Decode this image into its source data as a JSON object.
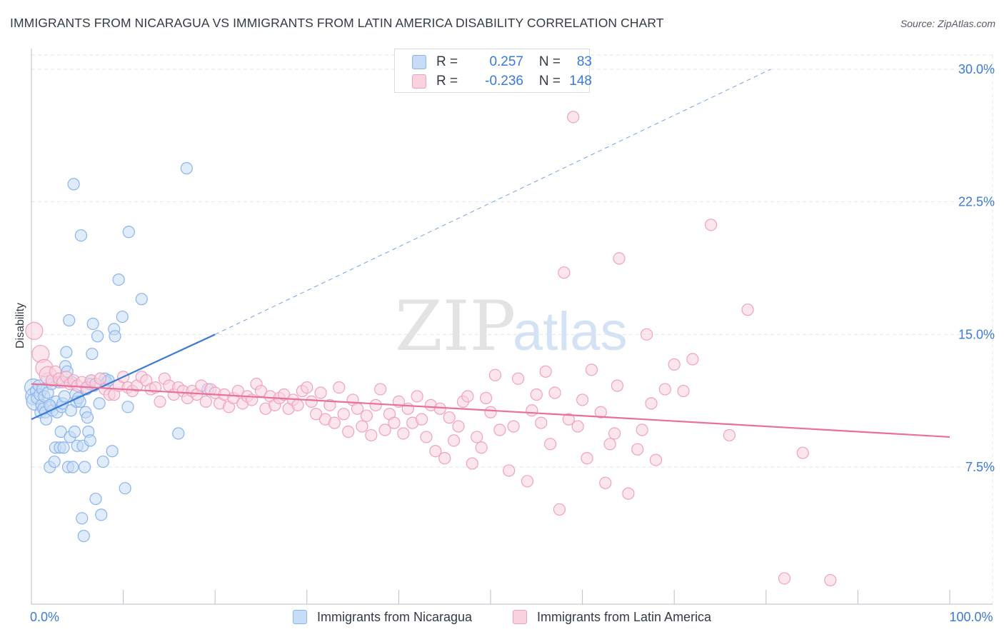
{
  "title": "IMMIGRANTS FROM NICARAGUA VS IMMIGRANTS FROM LATIN AMERICA DISABILITY CORRELATION CHART",
  "source": "Source: ZipAtlas.com",
  "watermark": {
    "zip": "ZIP",
    "atlas": "atlas"
  },
  "stats": [
    {
      "r_label": "R =",
      "r_value": "0.257",
      "n_label": "N =",
      "n_value": "83",
      "color": "#8ab4ec",
      "fill": "#c7dcf6"
    },
    {
      "r_label": "R =",
      "r_value": "-0.236",
      "n_label": "N =",
      "n_value": "148",
      "color": "#f1a1bd",
      "fill": "#fad2df"
    }
  ],
  "chart_data": {
    "type": "scatter",
    "xlabel": "",
    "ylabel": "Disability",
    "xlim": [
      0,
      100
    ],
    "ylim": [
      0,
      31.5
    ],
    "x_tick_labels": [
      {
        "value": 0,
        "label": "0.0%"
      },
      {
        "value": 100,
        "label": "100.0%"
      }
    ],
    "y_tick_labels": [
      {
        "value": 7.5,
        "label": "7.5%"
      },
      {
        "value": 15.0,
        "label": "15.0%"
      },
      {
        "value": 22.5,
        "label": "22.5%"
      },
      {
        "value": 30.0,
        "label": "30.0%"
      }
    ],
    "x_minor_ticks": [
      0,
      10,
      20,
      30,
      40,
      50,
      60,
      70,
      80,
      90,
      100
    ],
    "grid": true,
    "legend_position": "bottom",
    "series": [
      {
        "name": "Immigrants from Nicaragua",
        "color": "#3a7bd5",
        "marker_fill": "#c7dcf6",
        "marker_stroke": "#8ab4ec",
        "trend": {
          "x1": 0,
          "y1": 10.2,
          "x2": 20,
          "y2": 15.0,
          "dashed_to_x": 80.5,
          "dashed_to_y": 30.0
        },
        "points": [
          [
            0.2,
            12.0
          ],
          [
            0.3,
            11.5
          ],
          [
            0.4,
            11.2
          ],
          [
            0.5,
            11.8
          ],
          [
            0.6,
            11.4
          ],
          [
            0.8,
            12.1
          ],
          [
            0.9,
            11.6
          ],
          [
            1.0,
            10.6
          ],
          [
            1.1,
            11.0
          ],
          [
            1.2,
            11.9
          ],
          [
            1.3,
            10.8
          ],
          [
            1.4,
            11.5
          ],
          [
            1.5,
            10.6
          ],
          [
            1.6,
            10.2
          ],
          [
            1.7,
            12.5
          ],
          [
            1.8,
            11.7
          ],
          [
            2.0,
            7.5
          ],
          [
            2.1,
            10.9
          ],
          [
            2.2,
            12.2
          ],
          [
            2.3,
            10.7
          ],
          [
            2.5,
            7.8
          ],
          [
            2.6,
            8.6
          ],
          [
            2.7,
            11.2
          ],
          [
            2.8,
            10.6
          ],
          [
            3.0,
            12.3
          ],
          [
            3.1,
            8.6
          ],
          [
            3.2,
            9.5
          ],
          [
            3.3,
            10.9
          ],
          [
            3.4,
            11.1
          ],
          [
            3.5,
            8.6
          ],
          [
            3.6,
            11.5
          ],
          [
            3.7,
            13.2
          ],
          [
            3.8,
            14.0
          ],
          [
            3.9,
            12.9
          ],
          [
            4.0,
            7.5
          ],
          [
            4.1,
            15.8
          ],
          [
            4.2,
            9.2
          ],
          [
            4.3,
            10.7
          ],
          [
            4.4,
            12.3
          ],
          [
            4.5,
            7.5
          ],
          [
            4.6,
            23.5
          ],
          [
            4.7,
            9.5
          ],
          [
            4.8,
            11.6
          ],
          [
            4.9,
            11.2
          ],
          [
            5.0,
            8.7
          ],
          [
            5.1,
            11.4
          ],
          [
            5.3,
            11.2
          ],
          [
            5.4,
            20.6
          ],
          [
            5.5,
            4.6
          ],
          [
            5.6,
            8.7
          ],
          [
            5.7,
            3.6
          ],
          [
            5.8,
            7.5
          ],
          [
            5.9,
            10.6
          ],
          [
            6.0,
            11.9
          ],
          [
            6.1,
            10.3
          ],
          [
            6.2,
            9.5
          ],
          [
            6.4,
            9.0
          ],
          [
            6.5,
            12.4
          ],
          [
            6.6,
            13.9
          ],
          [
            6.7,
            15.6
          ],
          [
            6.8,
            12.1
          ],
          [
            7.0,
            5.7
          ],
          [
            7.2,
            14.9
          ],
          [
            7.4,
            11.1
          ],
          [
            7.6,
            4.8
          ],
          [
            7.8,
            7.8
          ],
          [
            8.0,
            12.5
          ],
          [
            8.2,
            12.3
          ],
          [
            8.4,
            12.4
          ],
          [
            8.8,
            8.4
          ],
          [
            9.0,
            15.3
          ],
          [
            9.1,
            14.9
          ],
          [
            9.5,
            18.1
          ],
          [
            9.9,
            16.0
          ],
          [
            10.2,
            6.3
          ],
          [
            10.5,
            10.9
          ],
          [
            10.6,
            20.8
          ],
          [
            12.0,
            17.0
          ],
          [
            16.0,
            9.4
          ],
          [
            16.9,
            24.4
          ],
          [
            19.2,
            11.9
          ],
          [
            2.0,
            11.0
          ],
          [
            6.3,
            12.2
          ]
        ]
      },
      {
        "name": "Immigrants from Latin America",
        "color": "#e8709a",
        "marker_fill": "#fad2df",
        "marker_stroke": "#f1a1bd",
        "trend": {
          "x1": 0,
          "y1": 12.2,
          "x2": 100,
          "y2": 9.2
        },
        "points": [
          [
            0.3,
            15.2
          ],
          [
            1.0,
            13.9
          ],
          [
            1.4,
            13.1
          ],
          [
            1.8,
            12.7
          ],
          [
            2.2,
            12.4
          ],
          [
            2.6,
            12.9
          ],
          [
            3.0,
            12.5
          ],
          [
            3.4,
            12.3
          ],
          [
            3.8,
            12.6
          ],
          [
            4.2,
            12.2
          ],
          [
            4.6,
            12.4
          ],
          [
            5.0,
            12.1
          ],
          [
            5.5,
            12.3
          ],
          [
            6.0,
            12.0
          ],
          [
            6.5,
            12.4
          ],
          [
            7.0,
            12.2
          ],
          [
            7.5,
            12.5
          ],
          [
            8.0,
            11.9
          ],
          [
            8.5,
            11.6
          ],
          [
            9.0,
            11.6
          ],
          [
            9.5,
            12.1
          ],
          [
            10.0,
            12.6
          ],
          [
            10.5,
            12.0
          ],
          [
            11.0,
            11.8
          ],
          [
            11.5,
            12.1
          ],
          [
            12.0,
            12.6
          ],
          [
            12.5,
            12.4
          ],
          [
            13.0,
            11.9
          ],
          [
            13.5,
            12.0
          ],
          [
            14.0,
            11.2
          ],
          [
            14.5,
            12.5
          ],
          [
            15.0,
            12.1
          ],
          [
            15.5,
            11.6
          ],
          [
            16.0,
            12.0
          ],
          [
            16.5,
            11.8
          ],
          [
            17.0,
            11.4
          ],
          [
            17.5,
            11.8
          ],
          [
            18.0,
            11.6
          ],
          [
            18.5,
            12.1
          ],
          [
            19.0,
            11.2
          ],
          [
            19.5,
            11.9
          ],
          [
            20.0,
            11.7
          ],
          [
            20.5,
            11.1
          ],
          [
            21.0,
            11.6
          ],
          [
            21.5,
            10.9
          ],
          [
            22.0,
            11.4
          ],
          [
            22.5,
            11.8
          ],
          [
            23.0,
            11.1
          ],
          [
            23.5,
            11.5
          ],
          [
            24.0,
            11.3
          ],
          [
            24.5,
            12.2
          ],
          [
            25.0,
            11.8
          ],
          [
            25.5,
            10.8
          ],
          [
            26.0,
            11.5
          ],
          [
            26.5,
            11.0
          ],
          [
            27.0,
            11.4
          ],
          [
            27.5,
            11.6
          ],
          [
            28.0,
            10.8
          ],
          [
            28.5,
            11.3
          ],
          [
            29.0,
            11.0
          ],
          [
            29.5,
            11.8
          ],
          [
            30.0,
            12.0
          ],
          [
            30.5,
            11.2
          ],
          [
            31.0,
            10.5
          ],
          [
            31.5,
            11.7
          ],
          [
            32.0,
            10.2
          ],
          [
            32.5,
            11.0
          ],
          [
            33.0,
            10.0
          ],
          [
            33.5,
            12.0
          ],
          [
            34.0,
            10.5
          ],
          [
            34.5,
            9.5
          ],
          [
            35.0,
            11.3
          ],
          [
            35.5,
            10.8
          ],
          [
            36.0,
            9.8
          ],
          [
            36.5,
            10.4
          ],
          [
            37.0,
            9.3
          ],
          [
            37.5,
            11.0
          ],
          [
            38.0,
            11.9
          ],
          [
            38.5,
            9.6
          ],
          [
            39.0,
            10.5
          ],
          [
            39.5,
            10.0
          ],
          [
            40.0,
            11.2
          ],
          [
            40.5,
            9.4
          ],
          [
            41.0,
            10.8
          ],
          [
            41.5,
            10.0
          ],
          [
            42.0,
            11.5
          ],
          [
            42.5,
            10.2
          ],
          [
            43.0,
            9.2
          ],
          [
            43.5,
            11.0
          ],
          [
            44.0,
            8.4
          ],
          [
            44.5,
            10.8
          ],
          [
            45.0,
            8.0
          ],
          [
            45.5,
            10.3
          ],
          [
            46.0,
            9.0
          ],
          [
            46.5,
            9.8
          ],
          [
            47.0,
            11.2
          ],
          [
            47.5,
            11.5
          ],
          [
            48.0,
            7.7
          ],
          [
            48.5,
            9.2
          ],
          [
            49.0,
            8.6
          ],
          [
            49.5,
            11.4
          ],
          [
            50.0,
            10.6
          ],
          [
            50.5,
            12.7
          ],
          [
            51.0,
            9.6
          ],
          [
            52.0,
            7.3
          ],
          [
            53.0,
            12.5
          ],
          [
            54.0,
            6.7
          ],
          [
            54.5,
            10.7
          ],
          [
            55.0,
            11.6
          ],
          [
            55.5,
            10.0
          ],
          [
            56.0,
            12.9
          ],
          [
            56.5,
            8.8
          ],
          [
            57.0,
            11.7
          ],
          [
            57.5,
            5.1
          ],
          [
            58.0,
            18.5
          ],
          [
            58.5,
            10.2
          ],
          [
            59.0,
            27.3
          ],
          [
            59.5,
            9.8
          ],
          [
            60.0,
            11.3
          ],
          [
            60.5,
            8.0
          ],
          [
            61.0,
            13.0
          ],
          [
            62.0,
            10.6
          ],
          [
            62.5,
            6.6
          ],
          [
            63.0,
            8.8
          ],
          [
            63.5,
            9.4
          ],
          [
            64.0,
            19.3
          ],
          [
            65.0,
            6.0
          ],
          [
            66.0,
            8.5
          ],
          [
            66.5,
            9.6
          ],
          [
            67.0,
            15.0
          ],
          [
            68.0,
            7.9
          ],
          [
            69.0,
            11.9
          ],
          [
            70.0,
            13.3
          ],
          [
            72.0,
            13.6
          ],
          [
            74.0,
            21.2
          ],
          [
            76.0,
            9.3
          ],
          [
            78.0,
            16.4
          ],
          [
            82.0,
            1.2
          ],
          [
            84.0,
            8.3
          ],
          [
            87.0,
            1.1
          ],
          [
            52.5,
            9.8
          ],
          [
            63.8,
            12.1
          ],
          [
            67.5,
            11.1
          ],
          [
            71.0,
            11.8
          ]
        ]
      }
    ]
  }
}
